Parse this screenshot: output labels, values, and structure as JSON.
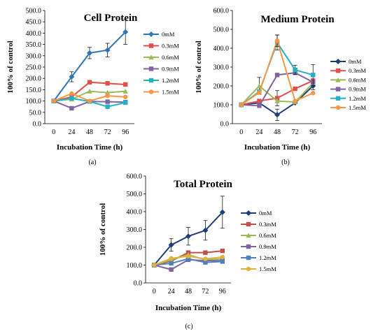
{
  "chart_data": [
    {
      "type": "line",
      "title": "Cell Protein",
      "caption": "(a)",
      "xlabel": "Incubation Time (h)",
      "ylabel": "100% of control",
      "x": [
        0,
        24,
        48,
        72,
        96
      ],
      "ylim": [
        0,
        500
      ],
      "yticks": [
        "0.0",
        "50.0",
        "100.0",
        "150.0",
        "200.0",
        "250.0",
        "300.0",
        "350.0",
        "400.0",
        "450.0",
        "500.0"
      ],
      "grid": false,
      "legend": "right",
      "series": [
        {
          "name": "0mM",
          "color": "#2E75B6",
          "marker": "diamond",
          "values": [
            100,
            207,
            312,
            325,
            405
          ],
          "err": [
            0,
            22,
            25,
            30,
            55
          ]
        },
        {
          "name": "0.3mM",
          "color": "#E0504A",
          "marker": "square",
          "values": [
            100,
            118,
            183,
            178,
            173
          ],
          "err": [
            0,
            0,
            0,
            0,
            0
          ]
        },
        {
          "name": "0.6mM",
          "color": "#9BBB59",
          "marker": "triangle",
          "values": [
            100,
            108,
            143,
            137,
            143
          ],
          "err": [
            0,
            0,
            0,
            0,
            0
          ]
        },
        {
          "name": "0.9mM",
          "color": "#8064A2",
          "marker": "square",
          "values": [
            100,
            68,
            98,
            97,
            95
          ],
          "err": [
            0,
            0,
            0,
            0,
            0
          ]
        },
        {
          "name": "1.2mM",
          "color": "#23B2C4",
          "marker": "square",
          "values": [
            100,
            112,
            98,
            75,
            93
          ],
          "err": [
            0,
            0,
            0,
            0,
            0
          ]
        },
        {
          "name": "1.5mM",
          "color": "#F79646",
          "marker": "circle",
          "values": [
            100,
            133,
            100,
            123,
            118
          ],
          "err": [
            0,
            0,
            0,
            0,
            0
          ]
        }
      ]
    },
    {
      "type": "line",
      "title": "Medium Protein",
      "caption": "(b)",
      "xlabel": "Incubation Time (h)",
      "ylabel": "100% of control",
      "x": [
        0,
        24,
        48,
        72,
        96
      ],
      "ylim": [
        0,
        600
      ],
      "yticks": [
        "0.0",
        "100.0",
        "200.0",
        "300.0",
        "400.0",
        "500.0",
        "600.0"
      ],
      "grid": false,
      "legend": "right",
      "series": [
        {
          "name": "0mM",
          "color": "#1F3F7A",
          "marker": "diamond",
          "values": [
            100,
            110,
            47,
            110,
            200
          ],
          "err": [
            0,
            20,
            30,
            0,
            20
          ]
        },
        {
          "name": "0.3mM",
          "color": "#E0504A",
          "marker": "square",
          "values": [
            100,
            120,
            135,
            185,
            228
          ],
          "err": [
            0,
            0,
            40,
            0,
            0
          ]
        },
        {
          "name": "0.6mM",
          "color": "#9BBB59",
          "marker": "triangle",
          "values": [
            100,
            200,
            120,
            115,
            215
          ],
          "err": [
            0,
            45,
            0,
            0,
            0
          ]
        },
        {
          "name": "0.9mM",
          "color": "#8064A2",
          "marker": "square",
          "values": [
            100,
            95,
            258,
            270,
            220
          ],
          "err": [
            0,
            0,
            0,
            0,
            0
          ]
        },
        {
          "name": "1.2mM",
          "color": "#23B2C4",
          "marker": "square",
          "values": [
            100,
            170,
            430,
            285,
            258
          ],
          "err": [
            0,
            0,
            40,
            25,
            55
          ]
        },
        {
          "name": "1.5mM",
          "color": "#F79646",
          "marker": "circle",
          "values": [
            100,
            165,
            440,
            120,
            162
          ],
          "err": [
            0,
            0,
            30,
            0,
            0
          ]
        }
      ]
    },
    {
      "type": "line",
      "title": "Total Protein",
      "caption": "(c)",
      "xlabel": "Incubation Time (h)",
      "ylabel": "100% of control",
      "x": [
        0,
        24,
        48,
        72,
        96
      ],
      "ylim": [
        0,
        600
      ],
      "yticks": [
        "0.0",
        "100.0",
        "200.0",
        "300.0",
        "400.0",
        "500.0",
        "600.0"
      ],
      "grid": false,
      "legend": "right",
      "series": [
        {
          "name": "0mM",
          "color": "#1F3F7A",
          "marker": "diamond",
          "values": [
            100,
            213,
            262,
            295,
            397
          ],
          "err": [
            0,
            35,
            50,
            55,
            90
          ]
        },
        {
          "name": "0.3mM",
          "color": "#C0504D",
          "marker": "square",
          "values": [
            100,
            123,
            170,
            170,
            180
          ],
          "err": [
            0,
            0,
            0,
            0,
            0
          ]
        },
        {
          "name": "0.6mM",
          "color": "#9BBB59",
          "marker": "triangle",
          "values": [
            100,
            130,
            158,
            130,
            135
          ],
          "err": [
            0,
            0,
            0,
            0,
            0
          ]
        },
        {
          "name": "0.9mM",
          "color": "#8064A2",
          "marker": "square",
          "values": [
            100,
            75,
            130,
            125,
            125
          ],
          "err": [
            0,
            0,
            0,
            0,
            0
          ]
        },
        {
          "name": "1.2mM",
          "color": "#4F81BD",
          "marker": "square",
          "values": [
            100,
            110,
            135,
            115,
            120
          ],
          "err": [
            0,
            0,
            0,
            0,
            0
          ]
        },
        {
          "name": "1.5mM",
          "color": "#E3B23C",
          "marker": "circle",
          "values": [
            100,
            138,
            150,
            135,
            145
          ],
          "err": [
            0,
            0,
            0,
            0,
            0
          ]
        }
      ]
    }
  ]
}
